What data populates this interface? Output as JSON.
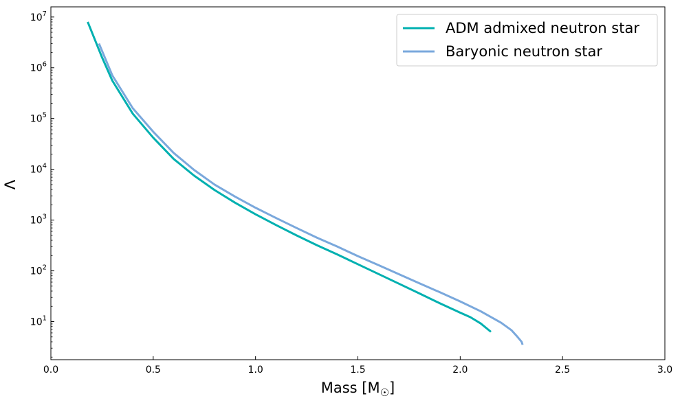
{
  "chart_data": {
    "type": "line",
    "xlabel": "Mass [M",
    "xlabel_sub": "☉",
    "xlabel_end": "]",
    "ylabel": "Λ",
    "xlim": [
      0.0,
      3.0
    ],
    "ylim_log10": [
      0.25,
      7.2
    ],
    "y_scale": "log",
    "grid": false,
    "legend_placement": "top-right",
    "x_ticks": [
      {
        "value": 0.0,
        "label": "0.0"
      },
      {
        "value": 0.5,
        "label": "0.5"
      },
      {
        "value": 1.0,
        "label": "1.0"
      },
      {
        "value": 1.5,
        "label": "1.5"
      },
      {
        "value": 2.0,
        "label": "2.0"
      },
      {
        "value": 2.5,
        "label": "2.5"
      },
      {
        "value": 3.0,
        "label": "3.0"
      }
    ],
    "y_ticks": [
      {
        "exp": 1,
        "base": "10",
        "sup": "1"
      },
      {
        "exp": 2,
        "base": "10",
        "sup": "2"
      },
      {
        "exp": 3,
        "base": "10",
        "sup": "3"
      },
      {
        "exp": 4,
        "base": "10",
        "sup": "4"
      },
      {
        "exp": 5,
        "base": "10",
        "sup": "5"
      },
      {
        "exp": 6,
        "base": "10",
        "sup": "6"
      },
      {
        "exp": 7,
        "base": "10",
        "sup": "7"
      }
    ],
    "series": [
      {
        "name": "ADM admixed neutron star",
        "color": "#00b0b0",
        "x": [
          0.18,
          0.25,
          0.3,
          0.4,
          0.5,
          0.6,
          0.7,
          0.8,
          0.9,
          1.0,
          1.1,
          1.2,
          1.3,
          1.4,
          1.5,
          1.6,
          1.7,
          1.8,
          1.9,
          2.0,
          2.05,
          2.1,
          2.15
        ],
        "y": [
          8000000,
          1600000,
          560000,
          125000,
          42000,
          16000,
          7500,
          3900,
          2200,
          1300,
          800,
          500,
          320,
          210,
          135,
          87,
          56,
          36,
          23,
          15,
          12.2,
          9.2,
          6.3
        ]
      },
      {
        "name": "Baryonic neutron star",
        "color": "#7aa8dc",
        "x": [
          0.235,
          0.3,
          0.4,
          0.5,
          0.6,
          0.7,
          0.8,
          0.9,
          1.0,
          1.1,
          1.2,
          1.3,
          1.4,
          1.5,
          1.6,
          1.7,
          1.8,
          1.9,
          2.0,
          2.1,
          2.2,
          2.25,
          2.28,
          2.3,
          2.305
        ],
        "y": [
          3000000,
          710000,
          160000,
          55000,
          21000,
          9700,
          5000,
          2900,
          1750,
          1100,
          700,
          450,
          300,
          195,
          130,
          86,
          57,
          38,
          25,
          16,
          9.5,
          6.8,
          5.0,
          4.0,
          3.5
        ]
      }
    ]
  }
}
